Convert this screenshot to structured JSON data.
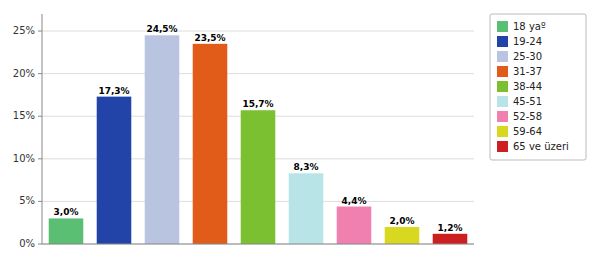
{
  "chart_data": {
    "type": "bar",
    "categories": [
      "18 yaº",
      "19-24",
      "25-30",
      "31-37",
      "38-44",
      "45-51",
      "52-58",
      "59-64",
      "65 ve üzeri"
    ],
    "values": [
      3.0,
      17.3,
      24.5,
      23.5,
      15.7,
      8.3,
      4.4,
      2.0,
      1.2
    ],
    "value_labels": [
      "3,0%",
      "17,3%",
      "24,5%",
      "23,5%",
      "15,7%",
      "8,3%",
      "4,4%",
      "2,0%",
      "1,2%"
    ],
    "colors": [
      "#5abf72",
      "#2244a8",
      "#b8c4e0",
      "#e05c18",
      "#7ac030",
      "#b8e4e8",
      "#f080b0",
      "#d8d820",
      "#cc2020"
    ],
    "ylim": [
      0,
      27
    ],
    "yticks": [
      {
        "value": 0,
        "label": "0%"
      },
      {
        "value": 5,
        "label": "5%"
      },
      {
        "value": 10,
        "label": "10%"
      },
      {
        "value": 15,
        "label": "15%"
      },
      {
        "value": 20,
        "label": "20%"
      },
      {
        "value": 25,
        "label": "25%"
      }
    ],
    "grid": true,
    "data_labels": true,
    "tick_labels": "y",
    "legend": "right"
  }
}
